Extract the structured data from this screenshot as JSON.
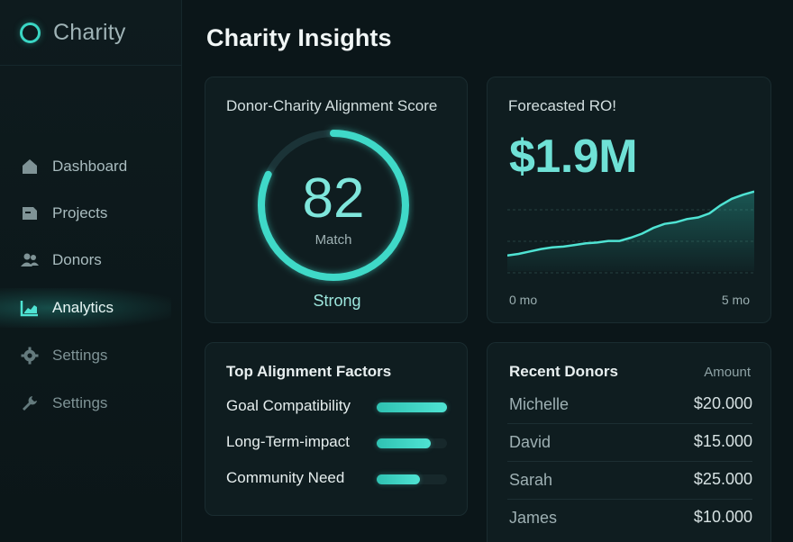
{
  "app": {
    "name": "Charity"
  },
  "sidebar": {
    "items": [
      {
        "label": "Dashboard",
        "icon": "home-icon",
        "active": false
      },
      {
        "label": "Projects",
        "icon": "document-icon",
        "active": false
      },
      {
        "label": "Donors",
        "icon": "users-icon",
        "active": false
      },
      {
        "label": "Analytics",
        "icon": "chart-icon",
        "active": true
      },
      {
        "label": "Settings",
        "icon": "gear-icon",
        "active": false
      },
      {
        "label": "Settings",
        "icon": "wrench-icon",
        "active": false
      }
    ]
  },
  "page": {
    "title": "Charity Insights"
  },
  "score": {
    "title": "Donor-Charity Alignment Score",
    "value": "82",
    "label": "Match",
    "status": "Strong",
    "percent": 82
  },
  "forecast": {
    "title": "Forecasted RO!",
    "value": "$1.9M",
    "x_start": "0 mo",
    "x_end": "5 mo",
    "series": [
      0.08,
      0.1,
      0.13,
      0.16,
      0.18,
      0.19,
      0.21,
      0.23,
      0.24,
      0.26,
      0.26,
      0.3,
      0.35,
      0.42,
      0.47,
      0.49,
      0.53,
      0.55,
      0.6,
      0.7,
      0.78,
      0.83,
      0.87
    ]
  },
  "factors": {
    "title": "Top Alignment Factors",
    "items": [
      {
        "label": "Goal Compatibility",
        "value": 1.0
      },
      {
        "label": "Long-Term-impact",
        "value": 0.77
      },
      {
        "label": "Community Need",
        "value": 0.62
      }
    ]
  },
  "donors": {
    "title": "Recent Donors",
    "amount_header": "Amount",
    "rows": [
      {
        "name": "Michelle",
        "amount": "$20.000"
      },
      {
        "name": "David",
        "amount": "$15.000"
      },
      {
        "name": "Sarah",
        "amount": "$25.000"
      },
      {
        "name": "James",
        "amount": "$10.000"
      }
    ]
  },
  "colors": {
    "accent": "#3ad6c4",
    "background": "#0b1619",
    "card": "#0f1d20"
  }
}
